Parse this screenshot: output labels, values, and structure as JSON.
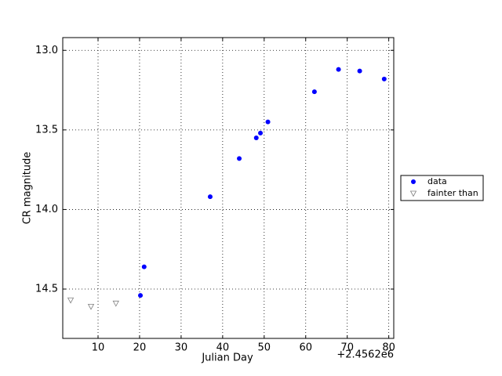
{
  "chart_data": {
    "type": "scatter",
    "x_label": "Julian Day",
    "y_label": "CR magnitude",
    "x_offset_label": "+2.4562e6",
    "xlim": [
      1.5,
      81.2
    ],
    "ylim": [
      14.81,
      12.92
    ],
    "xticks": [
      10,
      20,
      30,
      40,
      50,
      60,
      70,
      80
    ],
    "yticks": [
      {
        "value": 13.0,
        "label": "13.0"
      },
      13.5,
      {
        "value": 14.0,
        "label": "14.0"
      },
      14.5
    ],
    "grid": true,
    "legend": "outside right",
    "series": [
      {
        "name": "data",
        "color": "#0000ff",
        "marker": "o",
        "x": [
          20.2,
          21.1,
          37.0,
          44.0,
          48.1,
          49.1,
          50.9,
          62.1,
          67.9,
          73.0,
          78.9
        ],
        "values": [
          14.54,
          14.36,
          13.92,
          13.68,
          13.55,
          13.52,
          13.45,
          13.26,
          13.12,
          13.13,
          13.18
        ]
      },
      {
        "name": "fainter than",
        "color": "#808080",
        "marker": "v",
        "x": [
          3.4,
          8.3,
          14.3
        ],
        "values": [
          14.57,
          14.61,
          14.59
        ]
      }
    ]
  }
}
